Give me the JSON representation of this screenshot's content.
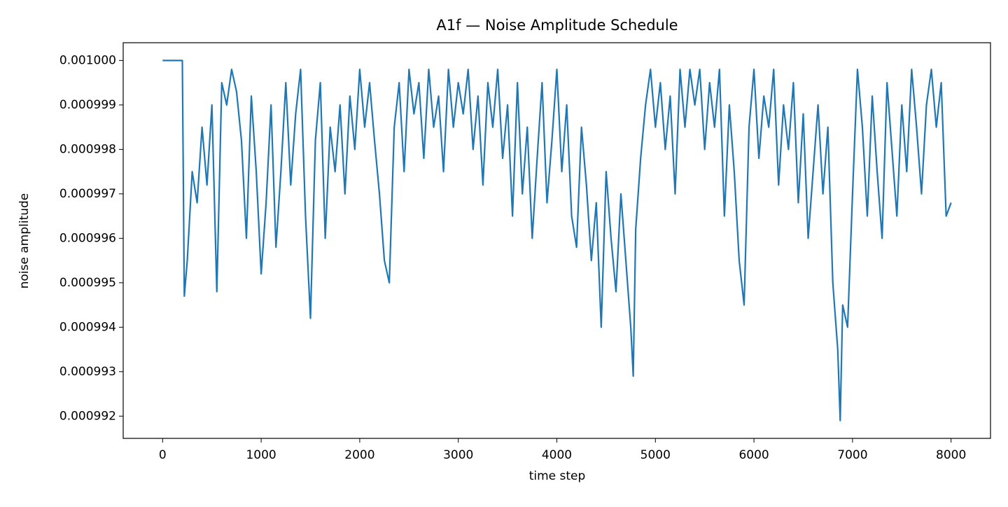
{
  "chart_data": {
    "type": "line",
    "title": "A1f — Noise Amplitude Schedule",
    "x_label": "time step",
    "y_label": "noise amplitude",
    "x": [
      0,
      50,
      100,
      150,
      200,
      220,
      250,
      300,
      350,
      400,
      450,
      500,
      550,
      600,
      650,
      700,
      750,
      800,
      850,
      900,
      950,
      1000,
      1050,
      1100,
      1150,
      1200,
      1250,
      1300,
      1350,
      1400,
      1450,
      1500,
      1550,
      1600,
      1650,
      1700,
      1750,
      1800,
      1850,
      1900,
      1950,
      2000,
      2050,
      2100,
      2150,
      2200,
      2250,
      2300,
      2350,
      2400,
      2450,
      2500,
      2550,
      2600,
      2650,
      2700,
      2750,
      2800,
      2850,
      2900,
      2950,
      3000,
      3050,
      3100,
      3150,
      3200,
      3250,
      3300,
      3350,
      3400,
      3450,
      3500,
      3550,
      3600,
      3650,
      3700,
      3750,
      3800,
      3850,
      3900,
      3950,
      4000,
      4050,
      4100,
      4150,
      4200,
      4250,
      4300,
      4350,
      4400,
      4450,
      4500,
      4550,
      4600,
      4650,
      4700,
      4750,
      4775,
      4800,
      4850,
      4900,
      4950,
      5000,
      5050,
      5100,
      5150,
      5200,
      5250,
      5300,
      5350,
      5400,
      5450,
      5500,
      5550,
      5600,
      5650,
      5700,
      5750,
      5800,
      5850,
      5900,
      5950,
      6000,
      6050,
      6100,
      6150,
      6200,
      6250,
      6300,
      6350,
      6400,
      6450,
      6500,
      6550,
      6600,
      6650,
      6700,
      6750,
      6800,
      6850,
      6875,
      6900,
      6950,
      7000,
      7050,
      7100,
      7150,
      7200,
      7250,
      7300,
      7350,
      7400,
      7450,
      7500,
      7550,
      7600,
      7650,
      7700,
      7750,
      7800,
      7850,
      7900,
      7950,
      8000
    ],
    "series": [
      {
        "name": "noise amplitude",
        "color": "#1f77b4",
        "values": [
          0.001,
          0.001,
          0.001,
          0.001,
          0.001,
          0.0009947,
          0.0009955,
          0.0009975,
          0.0009968,
          0.0009985,
          0.0009972,
          0.000999,
          0.0009948,
          0.0009995,
          0.000999,
          0.0009998,
          0.0009993,
          0.0009982,
          0.000996,
          0.0009992,
          0.0009975,
          0.0009952,
          0.0009968,
          0.000999,
          0.0009958,
          0.0009975,
          0.0009995,
          0.0009972,
          0.0009988,
          0.0009998,
          0.0009965,
          0.0009942,
          0.0009982,
          0.0009995,
          0.000996,
          0.0009985,
          0.0009975,
          0.000999,
          0.000997,
          0.0009992,
          0.000998,
          0.0009998,
          0.0009985,
          0.0009995,
          0.0009982,
          0.000997,
          0.0009955,
          0.000995,
          0.0009985,
          0.0009995,
          0.0009975,
          0.0009998,
          0.0009988,
          0.0009995,
          0.0009978,
          0.0009998,
          0.0009985,
          0.0009992,
          0.0009975,
          0.0009998,
          0.0009985,
          0.0009995,
          0.0009988,
          0.0009998,
          0.000998,
          0.0009992,
          0.0009972,
          0.0009995,
          0.0009985,
          0.0009998,
          0.0009978,
          0.000999,
          0.0009965,
          0.0009995,
          0.000997,
          0.0009985,
          0.000996,
          0.0009978,
          0.0009995,
          0.0009968,
          0.0009982,
          0.0009998,
          0.0009975,
          0.000999,
          0.0009965,
          0.0009958,
          0.0009985,
          0.0009972,
          0.0009955,
          0.0009968,
          0.000994,
          0.0009975,
          0.000996,
          0.0009948,
          0.000997,
          0.0009955,
          0.000994,
          0.0009929,
          0.0009962,
          0.0009978,
          0.000999,
          0.0009998,
          0.0009985,
          0.0009995,
          0.000998,
          0.0009992,
          0.000997,
          0.0009998,
          0.0009985,
          0.0009998,
          0.000999,
          0.0009998,
          0.000998,
          0.0009995,
          0.0009985,
          0.0009998,
          0.0009965,
          0.000999,
          0.0009975,
          0.0009955,
          0.0009945,
          0.0009985,
          0.0009998,
          0.0009978,
          0.0009992,
          0.0009985,
          0.0009998,
          0.0009972,
          0.000999,
          0.000998,
          0.0009995,
          0.0009968,
          0.0009988,
          0.000996,
          0.0009975,
          0.000999,
          0.000997,
          0.0009985,
          0.000995,
          0.0009935,
          0.0009919,
          0.0009945,
          0.000994,
          0.000997,
          0.0009998,
          0.0009985,
          0.0009965,
          0.0009992,
          0.0009975,
          0.000996,
          0.0009995,
          0.000998,
          0.0009965,
          0.000999,
          0.0009975,
          0.0009998,
          0.0009985,
          0.000997,
          0.000999,
          0.0009998,
          0.0009985,
          0.0009995,
          0.0009965,
          0.0009968
        ]
      }
    ],
    "xlim": [
      -400,
      8400
    ],
    "xticks": [
      0,
      1000,
      2000,
      3000,
      4000,
      5000,
      6000,
      7000,
      8000
    ],
    "ylim": [
      0.0009915,
      0.0010004
    ],
    "yticks": [
      0.000992,
      0.000993,
      0.000994,
      0.000995,
      0.000996,
      0.000997,
      0.000998,
      0.000999,
      {
        "value": 0.001,
        "label": "0.001000"
      }
    ]
  }
}
